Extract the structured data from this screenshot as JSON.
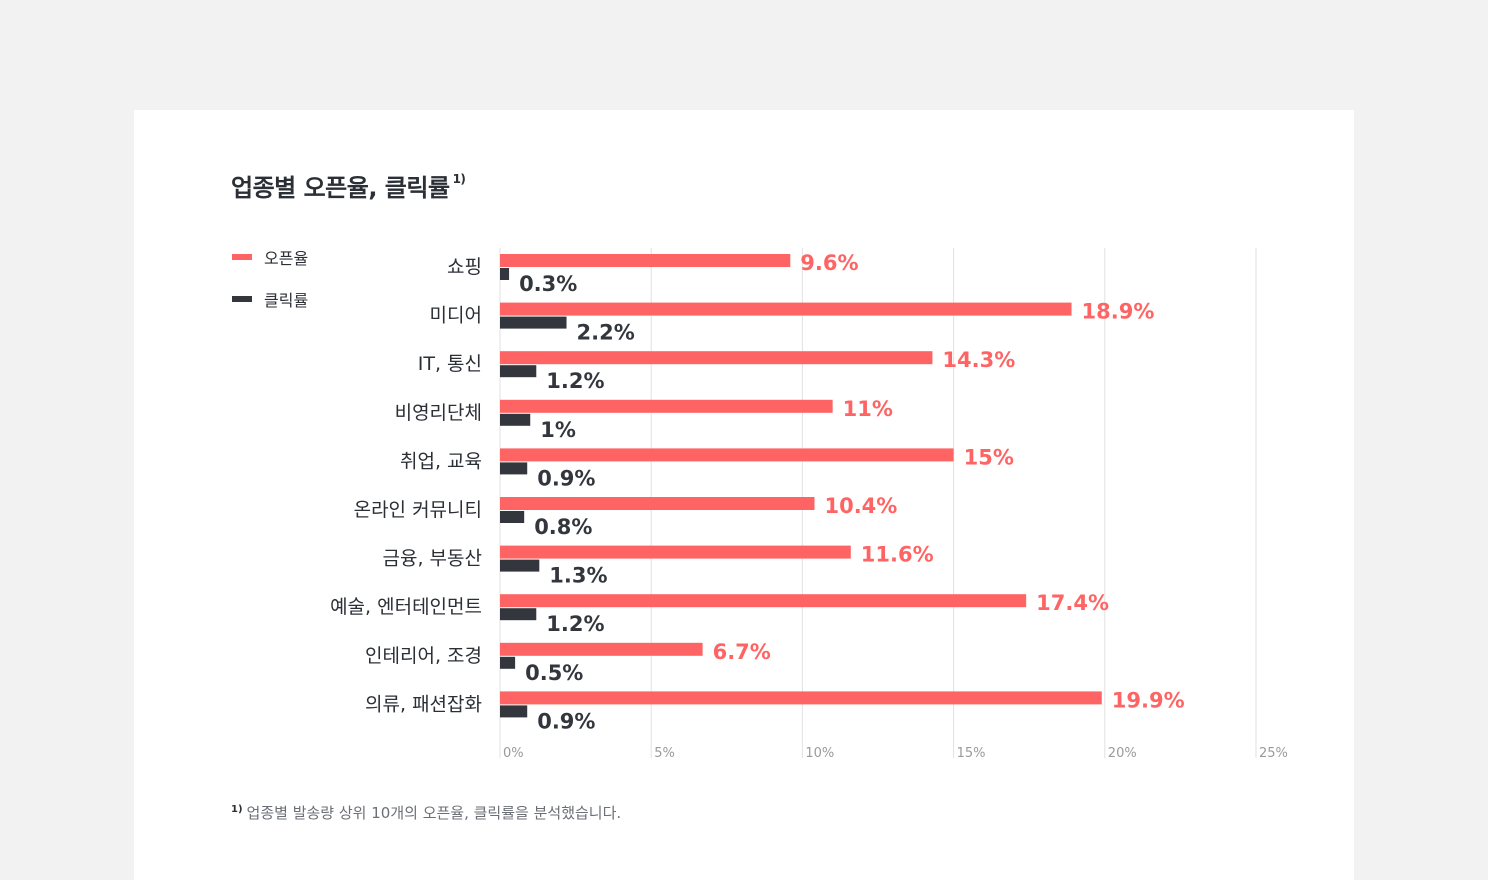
{
  "colors": {
    "open": "#ff6464",
    "click": "#33373d",
    "grid": "#e2e2e2",
    "tick": "#9a9a9a",
    "label": "#2b2f36"
  },
  "chart_data": {
    "type": "bar",
    "orientation": "horizontal",
    "title": "업종별 오픈율, 클릭률",
    "title_footnote_marker": "1)",
    "categories": [
      "쇼핑",
      "미디어",
      "IT, 통신",
      "비영리단체",
      "취업, 교육",
      "온라인 커뮤니티",
      "금융, 부동산",
      "예술, 엔터테인먼트",
      "인테리어, 조경",
      "의류, 패션잡화"
    ],
    "series": [
      {
        "name": "오픈율",
        "values": [
          9.6,
          18.9,
          14.3,
          11,
          15,
          10.4,
          11.6,
          17.4,
          6.7,
          19.9
        ],
        "labels": [
          "9.6%",
          "18.9%",
          "14.3%",
          "11%",
          "15%",
          "10.4%",
          "11.6%",
          "17.4%",
          "6.7%",
          "19.9%"
        ]
      },
      {
        "name": "클릭률",
        "values": [
          0.3,
          2.2,
          1.2,
          1,
          0.9,
          0.8,
          1.3,
          1.2,
          0.5,
          0.9
        ],
        "labels": [
          "0.3%",
          "2.2%",
          "1.2%",
          "1%",
          "0.9%",
          "0.8%",
          "1.3%",
          "1.2%",
          "0.5%",
          "0.9%"
        ]
      }
    ],
    "xlim": [
      0,
      25
    ],
    "xticks": [
      0,
      5,
      10,
      15,
      20,
      25
    ],
    "xtick_labels": [
      "0%",
      "5%",
      "10%",
      "15%",
      "20%",
      "25%"
    ],
    "grid": true,
    "legend_position": "top-left",
    "footnote_marker": "1)",
    "footnote": "업종별 발송량 상위 10개의 오픈율, 클릭률을 분석했습니다."
  }
}
